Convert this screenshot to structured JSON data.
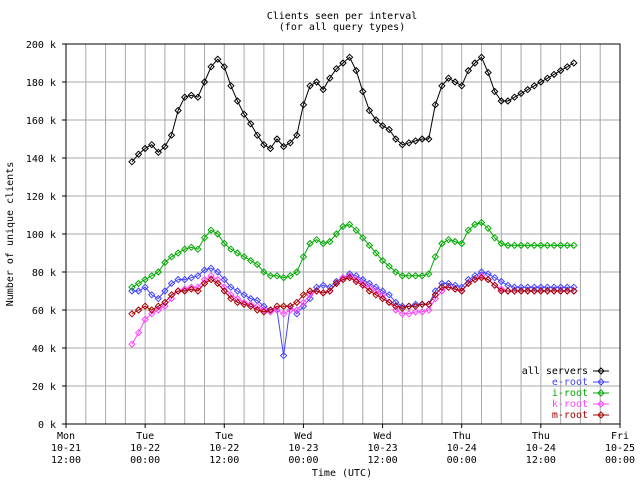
{
  "chart_data": {
    "type": "line",
    "title": "Clients seen per interval",
    "subtitle": "(for all query types)",
    "xlabel": "Time (UTC)",
    "ylabel": "Number of unique clients",
    "grid": true,
    "legend_position": "bottom-right",
    "xlim": [
      "2008-10-21 12:00",
      "2008-10-25 00:00"
    ],
    "ylim": [
      0,
      200000
    ],
    "yticks": [
      {
        "value": 0,
        "label": "0 k"
      },
      {
        "value": 20000,
        "label": "20 k"
      },
      {
        "value": 40000,
        "label": "40 k"
      },
      {
        "value": 60000,
        "label": "60 k"
      },
      {
        "value": 80000,
        "label": "80 k"
      },
      {
        "value": 100000,
        "label": "100 k"
      },
      {
        "value": 120000,
        "label": "120 k"
      },
      {
        "value": 140000,
        "label": "140 k"
      },
      {
        "value": 160000,
        "label": "160 k"
      },
      {
        "value": 180000,
        "label": "180 k"
      },
      {
        "value": 200000,
        "label": "200 k"
      }
    ],
    "xticks": [
      {
        "hour": 0,
        "line1": "Mon",
        "line2": "10-21",
        "line3": "12:00"
      },
      {
        "hour": 12,
        "line1": "Tue",
        "line2": "10-22",
        "line3": "00:00"
      },
      {
        "hour": 24,
        "line1": "Tue",
        "line2": "10-22",
        "line3": "12:00"
      },
      {
        "hour": 36,
        "line1": "Wed",
        "line2": "10-23",
        "line3": "00:00"
      },
      {
        "hour": 48,
        "line1": "Wed",
        "line2": "10-23",
        "line3": "12:00"
      },
      {
        "hour": 60,
        "line1": "Thu",
        "line2": "10-24",
        "line3": "00:00"
      },
      {
        "hour": 72,
        "line1": "Thu",
        "line2": "10-24",
        "line3": "12:00"
      },
      {
        "hour": 84,
        "line1": "Fri",
        "line2": "10-25",
        "line3": "00:00"
      }
    ],
    "x_unit": "hours after Mon 10-21 12:00 UTC",
    "series": [
      {
        "name": "all servers",
        "color": "#000000",
        "x": [
          10,
          11,
          12,
          13,
          14,
          15,
          16,
          17,
          18,
          19,
          20,
          21,
          22,
          23,
          24,
          25,
          26,
          27,
          28,
          29,
          30,
          31,
          32,
          33,
          34,
          35,
          36,
          37,
          38,
          39,
          40,
          41,
          42,
          43,
          44,
          45,
          46,
          47,
          48,
          49,
          50,
          51,
          52,
          53,
          54,
          55,
          56,
          57,
          58,
          59,
          60,
          61,
          62,
          63,
          64,
          65,
          66,
          67,
          68,
          69,
          70,
          71,
          72,
          73,
          74,
          75,
          76,
          77
        ],
        "values": [
          138000,
          142000,
          145000,
          147000,
          143000,
          146000,
          152000,
          165000,
          172000,
          173000,
          172000,
          180000,
          188000,
          192000,
          188000,
          178000,
          170000,
          163000,
          158000,
          152000,
          147000,
          145000,
          150000,
          146000,
          148000,
          152000,
          168000,
          178000,
          180000,
          176000,
          182000,
          187000,
          190000,
          193000,
          186000,
          175000,
          165000,
          160000,
          157000,
          155000,
          150000,
          147000,
          148000,
          149000,
          150000,
          150000,
          168000,
          178000,
          182000,
          180000,
          178000,
          186000,
          190000,
          193000,
          185000,
          175000,
          170000,
          170000,
          172000,
          174000,
          176000,
          178000,
          180000,
          182000,
          184000,
          186000,
          188000,
          190000
        ]
      },
      {
        "name": "e-root",
        "color": "#4444ff",
        "x": [
          10,
          11,
          12,
          13,
          14,
          15,
          16,
          17,
          18,
          19,
          20,
          21,
          22,
          23,
          24,
          25,
          26,
          27,
          28,
          29,
          30,
          31,
          32,
          33,
          34,
          35,
          36,
          37,
          38,
          39,
          40,
          41,
          42,
          43,
          44,
          45,
          46,
          47,
          48,
          49,
          50,
          51,
          52,
          53,
          54,
          55,
          56,
          57,
          58,
          59,
          60,
          61,
          62,
          63,
          64,
          65,
          66,
          67,
          68,
          69,
          70,
          71,
          72,
          73,
          74,
          75,
          76,
          77
        ],
        "values": [
          70000,
          70000,
          72000,
          68000,
          66000,
          70000,
          74000,
          76000,
          76000,
          77000,
          78000,
          81000,
          82000,
          80000,
          76000,
          72000,
          70000,
          68000,
          66000,
          65000,
          62000,
          60000,
          60000,
          36000,
          62000,
          58000,
          62000,
          66000,
          72000,
          73000,
          72000,
          75000,
          77000,
          79000,
          78000,
          76000,
          74000,
          72000,
          70000,
          68000,
          64000,
          62000,
          62000,
          63000,
          63000,
          63000,
          70000,
          74000,
          74000,
          73000,
          72000,
          76000,
          78000,
          80000,
          79000,
          77000,
          75000,
          73000,
          72000,
          72000,
          72000,
          72000,
          72000,
          72000,
          72000,
          72000,
          72000,
          72000
        ]
      },
      {
        "name": "i-root",
        "color": "#00aa00",
        "x": [
          10,
          11,
          12,
          13,
          14,
          15,
          16,
          17,
          18,
          19,
          20,
          21,
          22,
          23,
          24,
          25,
          26,
          27,
          28,
          29,
          30,
          31,
          32,
          33,
          34,
          35,
          36,
          37,
          38,
          39,
          40,
          41,
          42,
          43,
          44,
          45,
          46,
          47,
          48,
          49,
          50,
          51,
          52,
          53,
          54,
          55,
          56,
          57,
          58,
          59,
          60,
          61,
          62,
          63,
          64,
          65,
          66,
          67,
          68,
          69,
          70,
          71,
          72,
          73,
          74,
          75,
          76,
          77
        ],
        "values": [
          72000,
          74000,
          76000,
          78000,
          80000,
          85000,
          88000,
          90000,
          92000,
          93000,
          92000,
          98000,
          102000,
          100000,
          95000,
          92000,
          90000,
          88000,
          86000,
          84000,
          80000,
          78000,
          78000,
          77000,
          78000,
          80000,
          88000,
          95000,
          97000,
          95000,
          96000,
          100000,
          104000,
          105000,
          102000,
          98000,
          94000,
          90000,
          86000,
          83000,
          80000,
          78000,
          78000,
          78000,
          78000,
          79000,
          88000,
          95000,
          97000,
          96000,
          95000,
          102000,
          105000,
          106000,
          103000,
          98000,
          95000,
          94000,
          94000,
          94000,
          94000,
          94000,
          94000,
          94000,
          94000,
          94000,
          94000,
          94000
        ]
      },
      {
        "name": "k-root",
        "color": "#ff44ff",
        "x": [
          10,
          11,
          12,
          13,
          14,
          15,
          16,
          17,
          18,
          19,
          20,
          21,
          22,
          23,
          24,
          25,
          26,
          27,
          28,
          29,
          30,
          31,
          32,
          33,
          34,
          35,
          36,
          37,
          38,
          39,
          40,
          41,
          42,
          43,
          44,
          45,
          46,
          47,
          48,
          49,
          50,
          51,
          52,
          53,
          54,
          55,
          56,
          57,
          58,
          59,
          60,
          61,
          62,
          63,
          64,
          65,
          66,
          67,
          68,
          69,
          70,
          71,
          72,
          73,
          74,
          75,
          76,
          77
        ],
        "values": [
          42000,
          48000,
          55000,
          58000,
          60000,
          62000,
          66000,
          70000,
          71000,
          72000,
          72000,
          76000,
          78000,
          76000,
          72000,
          68000,
          66000,
          64000,
          63000,
          62000,
          60000,
          59000,
          60000,
          58000,
          60000,
          60000,
          64000,
          68000,
          70000,
          69000,
          70000,
          74000,
          77000,
          78000,
          76000,
          74000,
          72000,
          70000,
          68000,
          64000,
          60000,
          58000,
          58000,
          59000,
          59000,
          60000,
          66000,
          70000,
          72000,
          71000,
          70000,
          74000,
          76000,
          78000,
          76000,
          73000,
          71000,
          70000,
          70000,
          70000,
          70000,
          70000,
          70000,
          70000,
          70000,
          70000,
          70000,
          70000
        ]
      },
      {
        "name": "m-root",
        "color": "#aa0000",
        "x": [
          10,
          11,
          12,
          13,
          14,
          15,
          16,
          17,
          18,
          19,
          20,
          21,
          22,
          23,
          24,
          25,
          26,
          27,
          28,
          29,
          30,
          31,
          32,
          33,
          34,
          35,
          36,
          37,
          38,
          39,
          40,
          41,
          42,
          43,
          44,
          45,
          46,
          47,
          48,
          49,
          50,
          51,
          52,
          53,
          54,
          55,
          56,
          57,
          58,
          59,
          60,
          61,
          62,
          63,
          64,
          65,
          66,
          67,
          68,
          69,
          70,
          71,
          72,
          73,
          74,
          75,
          76,
          77
        ],
        "values": [
          58000,
          60000,
          62000,
          60000,
          62000,
          64000,
          68000,
          70000,
          70000,
          71000,
          70000,
          74000,
          76000,
          74000,
          70000,
          66000,
          64000,
          63000,
          62000,
          60000,
          59000,
          60000,
          62000,
          62000,
          62000,
          64000,
          68000,
          70000,
          70000,
          69000,
          70000,
          74000,
          76000,
          77000,
          75000,
          73000,
          70000,
          68000,
          66000,
          64000,
          62000,
          61000,
          62000,
          62000,
          63000,
          63000,
          68000,
          72000,
          72000,
          71000,
          70000,
          74000,
          76000,
          77000,
          76000,
          73000,
          70000,
          70000,
          70000,
          70000,
          70000,
          70000,
          70000,
          70000,
          70000,
          70000,
          70000,
          70000
        ]
      }
    ]
  }
}
